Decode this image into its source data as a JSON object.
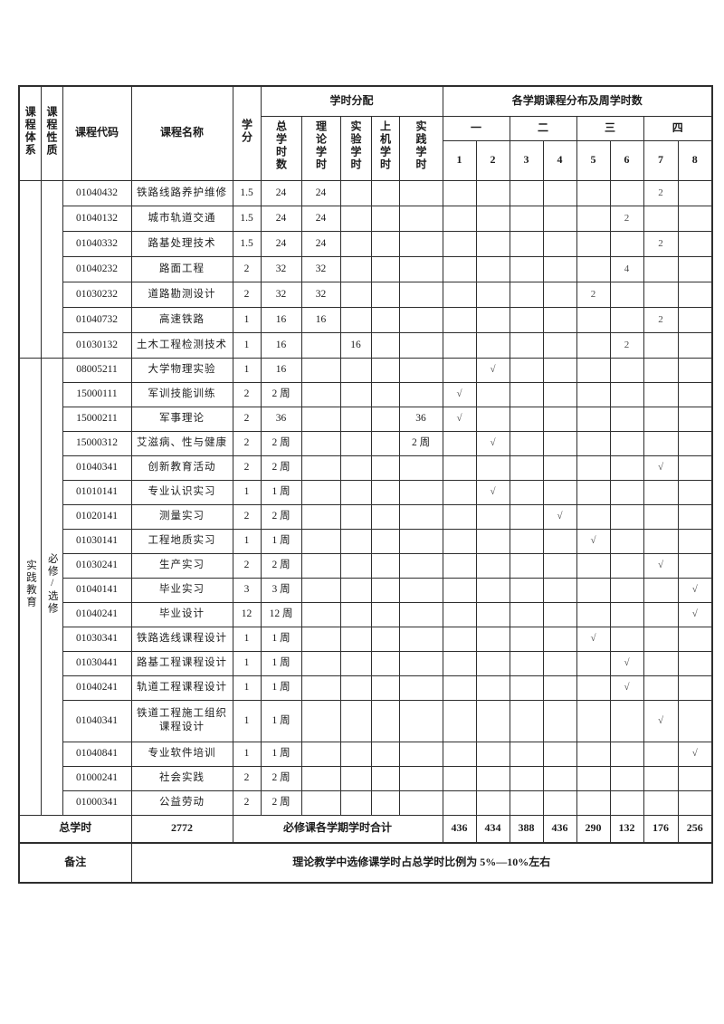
{
  "header": {
    "col_system": "课程体系",
    "col_nature": "课程性质",
    "col_code": "课程代码",
    "col_name": "课程名称",
    "col_credit": "学分",
    "hours_group": "学时分配",
    "hours_cols": [
      "总学时数",
      "理论学时",
      "实验学时",
      "上机学时",
      "实践学时"
    ],
    "semester_group": "各学期课程分布及周学时数",
    "semester_terms": [
      "一",
      "二",
      "三",
      "四"
    ],
    "semester_nums": [
      "1",
      "2",
      "3",
      "4",
      "5",
      "6",
      "7",
      "8"
    ]
  },
  "groups": {
    "blank": {
      "start": 0,
      "count": 7,
      "system": "",
      "nature": ""
    },
    "practice": {
      "start": 7,
      "count": 18,
      "system": "实践教育",
      "nature": "必修/选修"
    }
  },
  "rows": [
    {
      "code": "01040432",
      "name": "铁路线路养护维修",
      "credit": "1.5",
      "total": "24",
      "theory": "24",
      "exp": "",
      "comp": "",
      "prac": "",
      "sem": [
        "",
        "",
        "",
        "",
        "",
        "",
        "2",
        ""
      ]
    },
    {
      "code": "01040132",
      "name": "城市轨道交通",
      "credit": "1.5",
      "total": "24",
      "theory": "24",
      "exp": "",
      "comp": "",
      "prac": "",
      "sem": [
        "",
        "",
        "",
        "",
        "",
        "2",
        "",
        ""
      ]
    },
    {
      "code": "01040332",
      "name": "路基处理技术",
      "credit": "1.5",
      "total": "24",
      "theory": "24",
      "exp": "",
      "comp": "",
      "prac": "",
      "sem": [
        "",
        "",
        "",
        "",
        "",
        "",
        "2",
        ""
      ]
    },
    {
      "code": "01040232",
      "name": "路面工程",
      "credit": "2",
      "total": "32",
      "theory": "32",
      "exp": "",
      "comp": "",
      "prac": "",
      "sem": [
        "",
        "",
        "",
        "",
        "",
        "4",
        "",
        ""
      ]
    },
    {
      "code": "01030232",
      "name": "道路勘测设计",
      "credit": "2",
      "total": "32",
      "theory": "32",
      "exp": "",
      "comp": "",
      "prac": "",
      "sem": [
        "",
        "",
        "",
        "",
        "2",
        "",
        "",
        ""
      ]
    },
    {
      "code": "01040732",
      "name": "高速铁路",
      "credit": "1",
      "total": "16",
      "theory": "16",
      "exp": "",
      "comp": "",
      "prac": "",
      "sem": [
        "",
        "",
        "",
        "",
        "",
        "",
        "2",
        ""
      ]
    },
    {
      "code": "01030132",
      "name": "土木工程检测技术",
      "credit": "1",
      "total": "16",
      "theory": "",
      "exp": "16",
      "comp": "",
      "prac": "",
      "sem": [
        "",
        "",
        "",
        "",
        "",
        "2",
        "",
        ""
      ]
    },
    {
      "code": "08005211",
      "name": "大学物理实验",
      "credit": "1",
      "total": "16",
      "theory": "",
      "exp": "",
      "comp": "",
      "prac": "",
      "sem": [
        "",
        "√",
        "",
        "",
        "",
        "",
        "",
        ""
      ]
    },
    {
      "code": "15000111",
      "name": "军训技能训练",
      "credit": "2",
      "total": "2 周",
      "theory": "",
      "exp": "",
      "comp": "",
      "prac": "",
      "sem": [
        "√",
        "",
        "",
        "",
        "",
        "",
        "",
        ""
      ]
    },
    {
      "code": "15000211",
      "name": "军事理论",
      "credit": "2",
      "total": "36",
      "theory": "",
      "exp": "",
      "comp": "",
      "prac": "36",
      "sem": [
        "√",
        "",
        "",
        "",
        "",
        "",
        "",
        ""
      ]
    },
    {
      "code": "15000312",
      "name": "艾滋病、性与健康",
      "credit": "2",
      "total": "2 周",
      "theory": "",
      "exp": "",
      "comp": "",
      "prac": "2 周",
      "sem": [
        "",
        "√",
        "",
        "",
        "",
        "",
        "",
        ""
      ]
    },
    {
      "code": "01040341",
      "name": "创新教育活动",
      "credit": "2",
      "total": "2 周",
      "theory": "",
      "exp": "",
      "comp": "",
      "prac": "",
      "sem": [
        "",
        "",
        "",
        "",
        "",
        "",
        "√",
        ""
      ]
    },
    {
      "code": "01010141",
      "name": "专业认识实习",
      "credit": "1",
      "total": "1 周",
      "theory": "",
      "exp": "",
      "comp": "",
      "prac": "",
      "sem": [
        "",
        "√",
        "",
        "",
        "",
        "",
        "",
        ""
      ]
    },
    {
      "code": "01020141",
      "name": "测量实习",
      "credit": "2",
      "total": "2 周",
      "theory": "",
      "exp": "",
      "comp": "",
      "prac": "",
      "sem": [
        "",
        "",
        "",
        "√",
        "",
        "",
        "",
        ""
      ]
    },
    {
      "code": "01030141",
      "name": "工程地质实习",
      "credit": "1",
      "total": "1 周",
      "theory": "",
      "exp": "",
      "comp": "",
      "prac": "",
      "sem": [
        "",
        "",
        "",
        "",
        "√",
        "",
        "",
        ""
      ]
    },
    {
      "code": "01030241",
      "name": "生产实习",
      "credit": "2",
      "total": "2 周",
      "theory": "",
      "exp": "",
      "comp": "",
      "prac": "",
      "sem": [
        "",
        "",
        "",
        "",
        "",
        "",
        "√",
        ""
      ]
    },
    {
      "code": "01040141",
      "name": "毕业实习",
      "credit": "3",
      "total": "3 周",
      "theory": "",
      "exp": "",
      "comp": "",
      "prac": "",
      "sem": [
        "",
        "",
        "",
        "",
        "",
        "",
        "",
        "√"
      ]
    },
    {
      "code": "01040241",
      "name": "毕业设计",
      "credit": "12",
      "total": "12 周",
      "theory": "",
      "exp": "",
      "comp": "",
      "prac": "",
      "sem": [
        "",
        "",
        "",
        "",
        "",
        "",
        "",
        "√"
      ]
    },
    {
      "code": "01030341",
      "name": "铁路选线课程设计",
      "credit": "1",
      "total": "1 周",
      "theory": "",
      "exp": "",
      "comp": "",
      "prac": "",
      "sem": [
        "",
        "",
        "",
        "",
        "√",
        "",
        "",
        ""
      ]
    },
    {
      "code": "01030441",
      "name": "路基工程课程设计",
      "credit": "1",
      "total": "1 周",
      "theory": "",
      "exp": "",
      "comp": "",
      "prac": "",
      "sem": [
        "",
        "",
        "",
        "",
        "",
        "√",
        "",
        ""
      ]
    },
    {
      "code": "01040241",
      "name": "轨道工程课程设计",
      "credit": "1",
      "total": "1 周",
      "theory": "",
      "exp": "",
      "comp": "",
      "prac": "",
      "sem": [
        "",
        "",
        "",
        "",
        "",
        "√",
        "",
        ""
      ]
    },
    {
      "code": "01040341",
      "name": "铁道工程施工组织课程设计",
      "credit": "1",
      "total": "1 周",
      "tall": true,
      "theory": "",
      "exp": "",
      "comp": "",
      "prac": "",
      "sem": [
        "",
        "",
        "",
        "",
        "",
        "",
        "√",
        ""
      ]
    },
    {
      "code": "01040841",
      "name": "专业软件培训",
      "credit": "1",
      "total": "1 周",
      "theory": "",
      "exp": "",
      "comp": "",
      "prac": "",
      "sem": [
        "",
        "",
        "",
        "",
        "",
        "",
        "",
        "√"
      ]
    },
    {
      "code": "01000241",
      "name": "社会实践",
      "credit": "2",
      "total": "2 周",
      "theory": "",
      "exp": "",
      "comp": "",
      "prac": "",
      "sem": [
        "",
        "",
        "",
        "",
        "",
        "",
        "",
        ""
      ]
    },
    {
      "code": "01000341",
      "name": "公益劳动",
      "credit": "2",
      "total": "2 周",
      "theory": "",
      "exp": "",
      "comp": "",
      "prac": "",
      "sem": [
        "",
        "",
        "",
        "",
        "",
        "",
        "",
        ""
      ]
    }
  ],
  "totals": {
    "label": "总学时",
    "total": "2772",
    "sum_label": "必修课各学期学时合计",
    "values": [
      "436",
      "434",
      "388",
      "436",
      "290",
      "132",
      "176",
      "256"
    ]
  },
  "remark": {
    "label": "备注",
    "text": "理论教学中选修课学时占总学时比例为 5%—10%左右"
  }
}
